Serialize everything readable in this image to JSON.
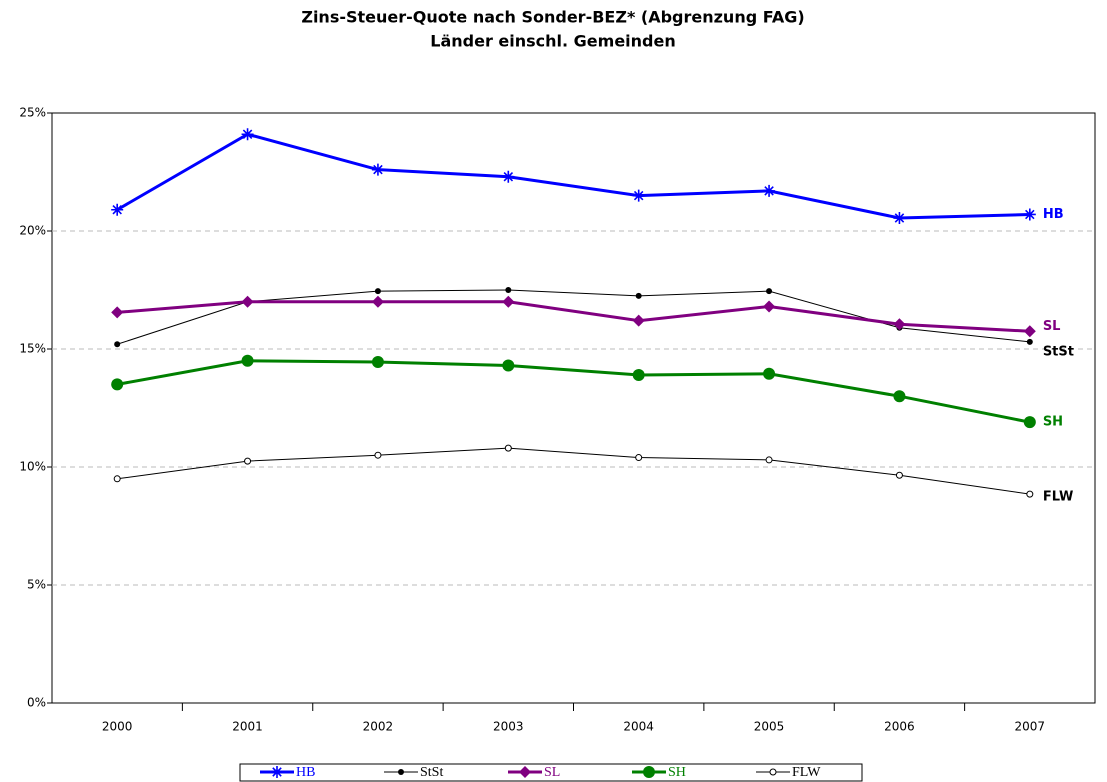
{
  "chart_data": {
    "type": "line",
    "title": "Zins-Steuer-Quote nach Sonder-BEZ* (Abgrenzung FAG)",
    "subtitle": "Länder einschl. Gemeinden",
    "categories": [
      "2000",
      "2001",
      "2002",
      "2003",
      "2004",
      "2005",
      "2006",
      "2007"
    ],
    "series": [
      {
        "name": "HB",
        "color": "#0000ff",
        "values": [
          20.9,
          24.1,
          22.6,
          22.3,
          21.5,
          21.7,
          20.55,
          20.7
        ]
      },
      {
        "name": "StSt",
        "color": "#000000",
        "values": [
          15.2,
          17.0,
          17.45,
          17.5,
          17.25,
          17.45,
          15.9,
          15.3
        ]
      },
      {
        "name": "SL",
        "color": "#800080",
        "values": [
          16.55,
          17.0,
          17.0,
          17.0,
          16.2,
          16.8,
          16.05,
          15.75
        ]
      },
      {
        "name": "SH",
        "color": "#008000",
        "values": [
          13.5,
          14.5,
          14.45,
          14.3,
          13.9,
          13.95,
          13.0,
          11.9
        ]
      },
      {
        "name": "FLW",
        "color": "#000000",
        "values": [
          9.5,
          10.25,
          10.5,
          10.8,
          10.4,
          10.3,
          9.65,
          8.85
        ]
      }
    ],
    "ylim": [
      0,
      25
    ],
    "yticks": [
      {
        "value": 0,
        "label": "0%"
      },
      {
        "value": 5,
        "label": "5%"
      },
      {
        "value": 10,
        "label": "10%"
      },
      {
        "value": 15,
        "label": "15%"
      },
      {
        "value": 20,
        "label": "20%"
      },
      {
        "value": 25,
        "label": "25%"
      }
    ],
    "grid": true,
    "legend": "bottom"
  }
}
